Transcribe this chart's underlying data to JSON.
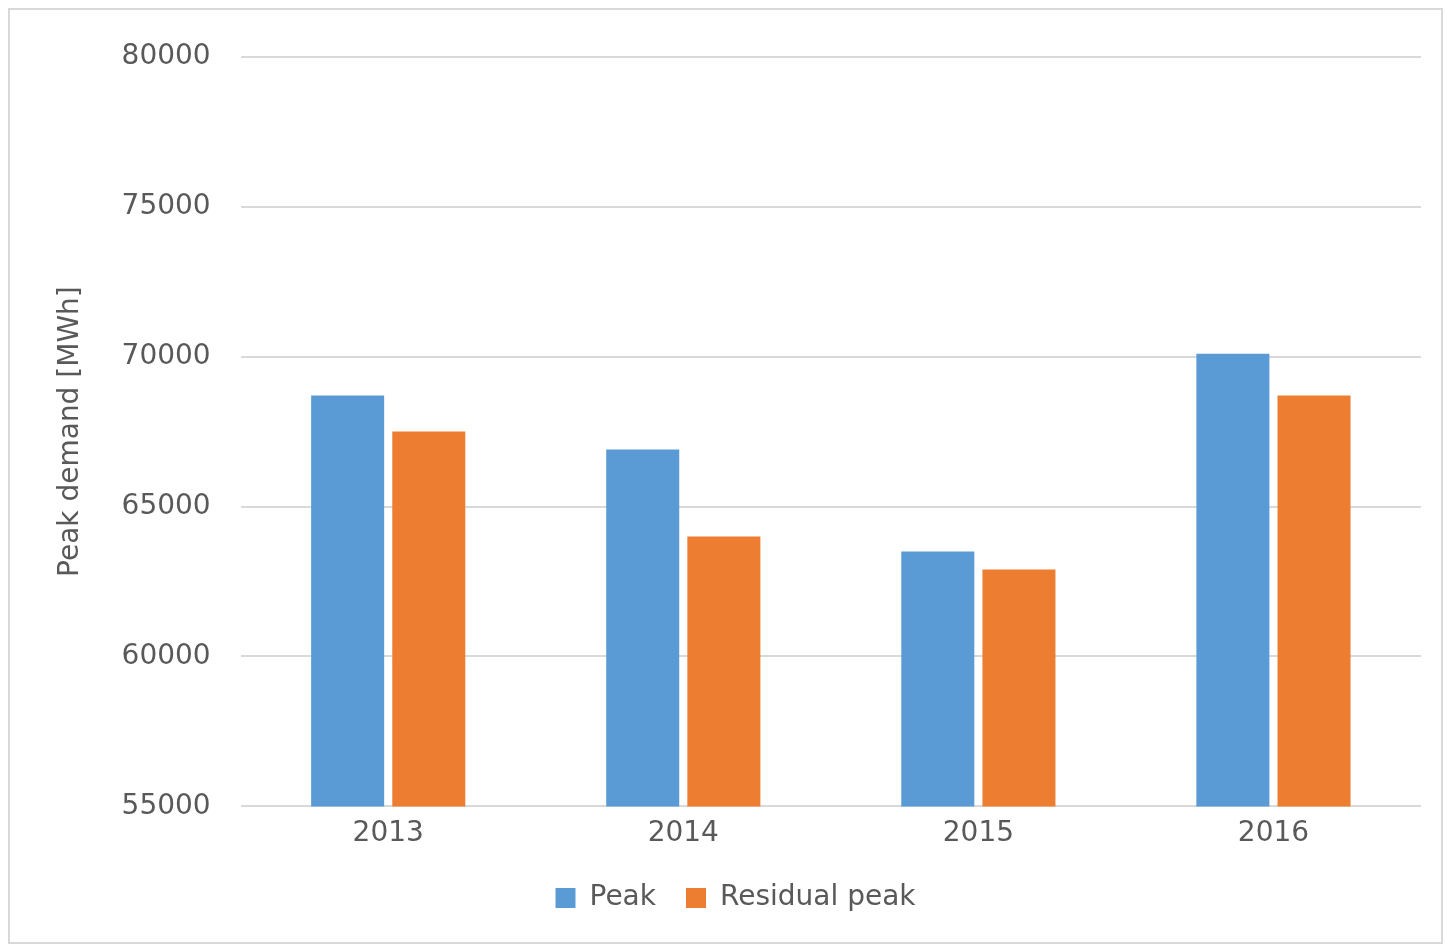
{
  "chart_data": {
    "type": "bar",
    "ylabel": "Peak demand [MWh]",
    "categories": [
      "2013",
      "2014",
      "2015",
      "2016"
    ],
    "series": [
      {
        "name": "Peak",
        "color": "#5b9bd5",
        "values": [
          68700,
          66900,
          63500,
          70100
        ]
      },
      {
        "name": "Residual peak",
        "color": "#ed7d31",
        "values": [
          67500,
          64000,
          62900,
          68700
        ]
      }
    ],
    "ylim": [
      55000,
      80000
    ],
    "yticks": [
      55000,
      60000,
      65000,
      70000,
      75000,
      80000
    ],
    "grid": "y",
    "legend": "bottom"
  }
}
